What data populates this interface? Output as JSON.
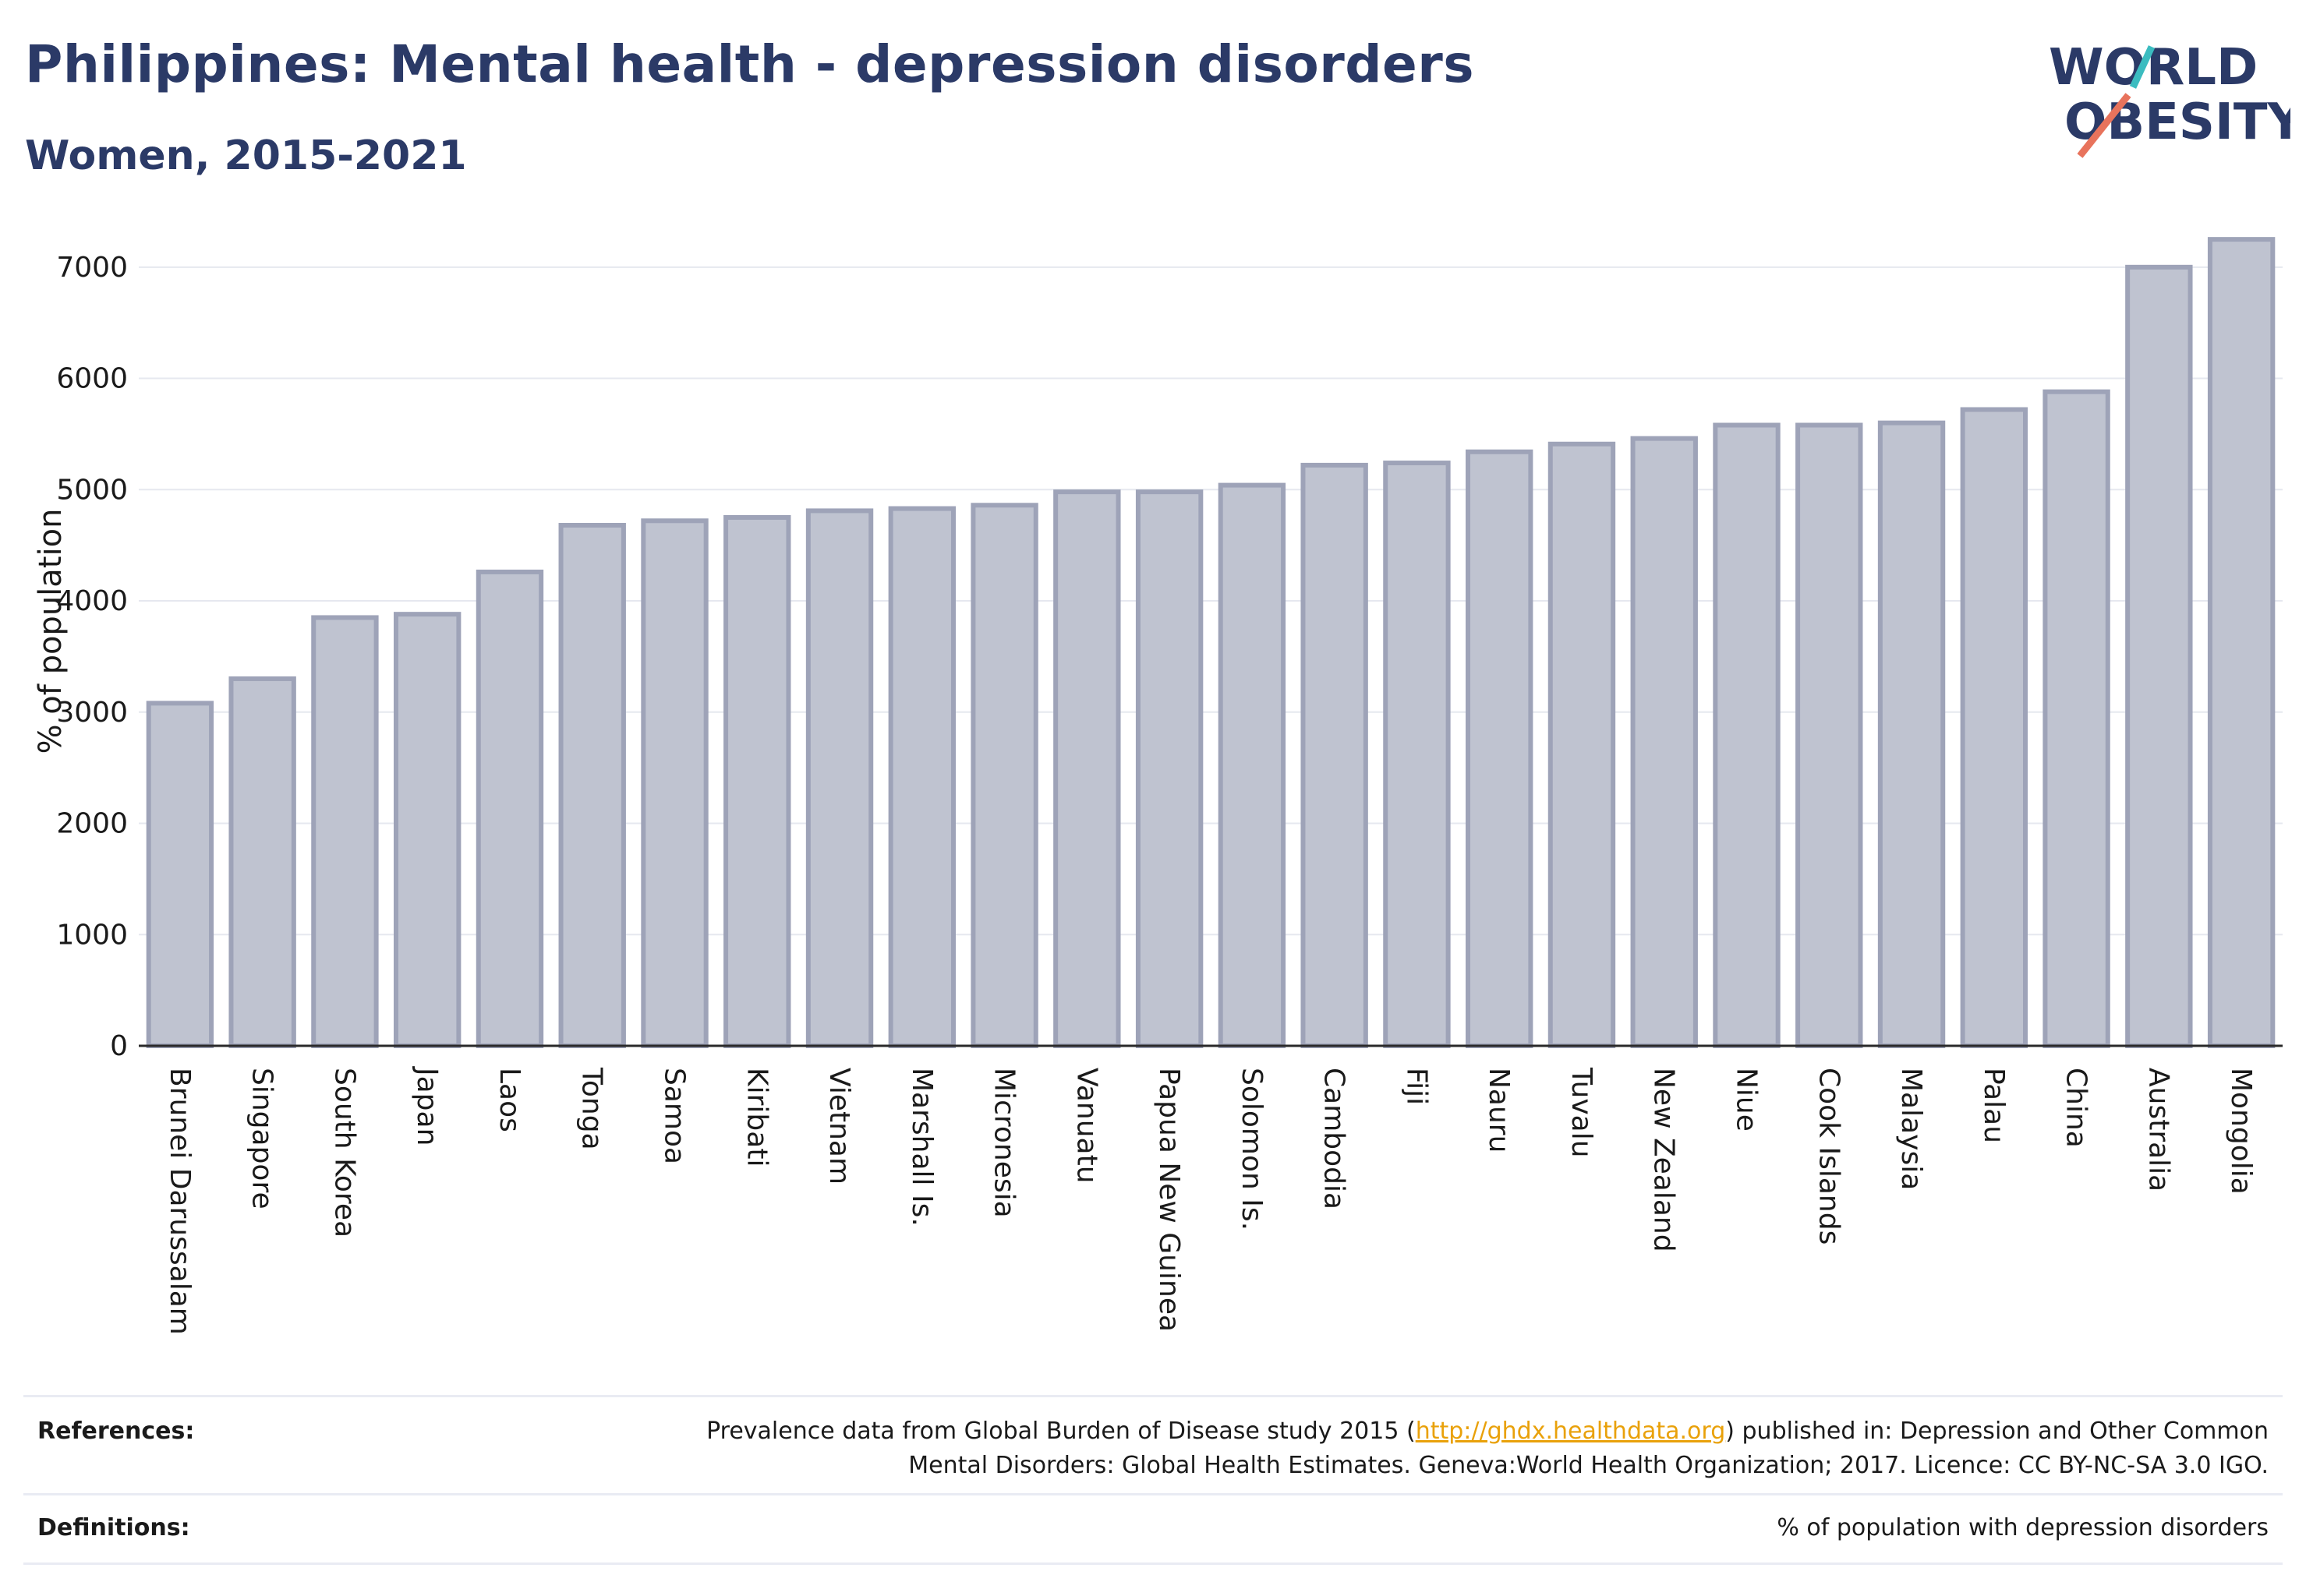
{
  "header": {
    "title": "Philippines: Mental health - depression disorders",
    "subtitle": "Women, 2015-2021"
  },
  "logo": {
    "line1": "WORLD",
    "line2": "OBESITY",
    "accent_teal": "#3bbcc0",
    "accent_coral": "#e8735c"
  },
  "chart_data": {
    "type": "bar",
    "ylabel": "% of population",
    "ylim": [
      0,
      7300
    ],
    "yticks": [
      0,
      1000,
      2000,
      3000,
      4000,
      5000,
      6000,
      7000
    ],
    "grid": true,
    "bar_color": "#bfc3d0",
    "bar_edge_color": "#9ea3b8",
    "categories": [
      "Brunei Darussalam",
      "Singapore",
      "South Korea",
      "Japan",
      "Laos",
      "Tonga",
      "Samoa",
      "Kiribati",
      "Vietnam",
      "Marshall Is.",
      "Micronesia",
      "Vanuatu",
      "Papua New Guinea",
      "Solomon Is.",
      "Cambodia",
      "Fiji",
      "Nauru",
      "Tuvalu",
      "New Zealand",
      "Niue",
      "Cook Islands",
      "Malaysia",
      "Palau",
      "China",
      "Australia",
      "Mongolia"
    ],
    "values": [
      3080,
      3300,
      3850,
      3880,
      4260,
      4680,
      4720,
      4750,
      4810,
      4830,
      4860,
      4980,
      4980,
      5040,
      5220,
      5240,
      5340,
      5410,
      5460,
      5580,
      5580,
      5600,
      5720,
      5880,
      7000,
      7250
    ]
  },
  "footer": {
    "references_label": "References:",
    "references_pre": "Prevalence data from Global Burden of Disease study 2015 (",
    "references_link": "http://ghdx.healthdata.org",
    "references_post": ") published in: Depression and Other Common",
    "references_line2": "Mental Disorders: Global Health Estimates. Geneva:World Health Organization; 2017. Licence: CC BY-NC-SA 3.0 IGO.",
    "definitions_label": "Definitions:",
    "definitions_text": "% of population with depression disorders"
  }
}
